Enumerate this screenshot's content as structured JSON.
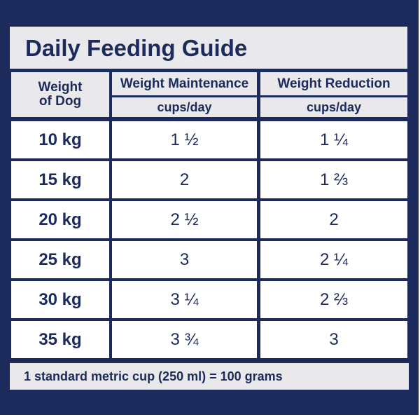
{
  "title": "Daily Feeding Guide",
  "headers": {
    "weight_line1": "Weight",
    "weight_line2": "of Dog",
    "maintenance": "Weight Maintenance",
    "reduction": "Weight Reduction",
    "unit_maintenance": "cups/day",
    "unit_reduction": "cups/day"
  },
  "rows": [
    {
      "weight": "10 kg",
      "maintenance": "1 ½",
      "reduction": "1 ¼"
    },
    {
      "weight": "15 kg",
      "maintenance": "2",
      "reduction": "1 ⅔"
    },
    {
      "weight": "20 kg",
      "maintenance": "2 ½",
      "reduction": "2"
    },
    {
      "weight": "25 kg",
      "maintenance": "3",
      "reduction": "2 ¼"
    },
    {
      "weight": "30 kg",
      "maintenance": "3 ¼",
      "reduction": "2 ⅔"
    },
    {
      "weight": "35 kg",
      "maintenance": "3 ¾",
      "reduction": "3"
    }
  ],
  "footer": "1 standard metric cup (250 ml) = 100 grams",
  "colors": {
    "navy": "#1c2b5c",
    "light_gray": "#e9e9eb",
    "white": "#ffffff"
  }
}
